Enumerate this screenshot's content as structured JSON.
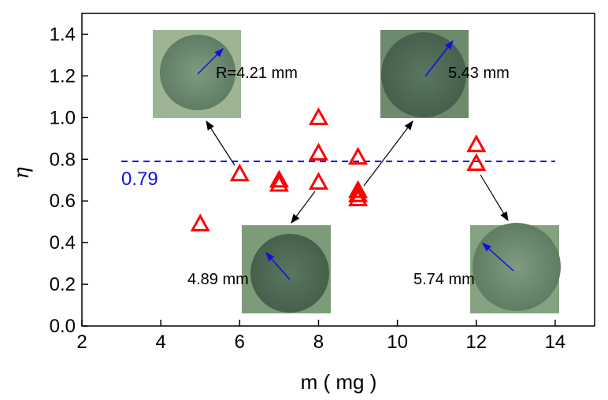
{
  "chart_data": {
    "type": "scatter",
    "xlabel": "m ( mg )",
    "ylabel": "η",
    "xlim": [
      2,
      15
    ],
    "ylim": [
      0,
      1.5
    ],
    "xticks": [
      2,
      4,
      6,
      8,
      10,
      12,
      14
    ],
    "yticks": [
      0.0,
      0.2,
      0.4,
      0.6,
      0.8,
      1.0,
      1.2,
      1.4
    ],
    "xtick_labels": [
      "2",
      "4",
      "6",
      "8",
      "10",
      "12",
      "14"
    ],
    "ytick_labels": [
      "0.0",
      "0.2",
      "0.4",
      "0.6",
      "0.8",
      "1.0",
      "1.2",
      "1.4"
    ],
    "grid": false,
    "marker": "open-triangle",
    "marker_color": "#ff0000",
    "series": [
      {
        "points": [
          {
            "x": 5,
            "y": 0.49
          },
          {
            "x": 6,
            "y": 0.73
          },
          {
            "x": 7,
            "y": 0.7
          },
          {
            "x": 7,
            "y": 0.68
          },
          {
            "x": 8,
            "y": 1.0
          },
          {
            "x": 8,
            "y": 0.83
          },
          {
            "x": 8,
            "y": 0.69
          },
          {
            "x": 9,
            "y": 0.81
          },
          {
            "x": 9,
            "y": 0.65
          },
          {
            "x": 9,
            "y": 0.63
          },
          {
            "x": 9,
            "y": 0.61
          },
          {
            "x": 12,
            "y": 0.87
          },
          {
            "x": 12,
            "y": 0.78
          }
        ]
      }
    ],
    "reference_line": {
      "y": 0.79,
      "x_range": [
        3,
        14
      ],
      "color": "#1010e0",
      "style": "dashed",
      "label": "0.79"
    },
    "annotations": [
      {
        "label": "R=4.21 mm",
        "point": {
          "x": 6,
          "y": 0.73
        }
      },
      {
        "label": "5.43 mm",
        "point": {
          "x": 9,
          "y": 0.63
        }
      },
      {
        "label": "4.89 mm",
        "point": {
          "x": 8,
          "y": 0.69
        }
      },
      {
        "label": "5.74 mm",
        "point": {
          "x": 12,
          "y": 0.78
        }
      }
    ]
  }
}
